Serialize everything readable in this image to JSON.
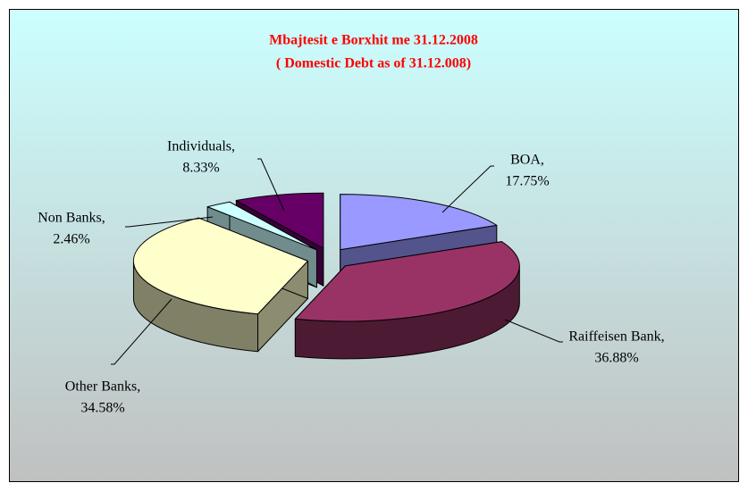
{
  "chart_data": {
    "type": "pie3d",
    "title": "Mbajtesit e Borxhit me 31.12.2008",
    "subtitle": "( Domestic Debt as of 31.12.008)",
    "categories": [
      "BOA,",
      "Raiffeisen Bank,",
      "Other Banks,",
      "Non Banks,",
      "Individuals,"
    ],
    "values": [
      17.75,
      36.88,
      34.58,
      2.46,
      8.33
    ],
    "value_labels": [
      "17.75%",
      "36.88%",
      "34.58%",
      "2.46%",
      "8.33%"
    ],
    "colors": [
      "#9999ff",
      "#993366",
      "#ffffcc",
      "#ccffff",
      "#660066"
    ]
  }
}
